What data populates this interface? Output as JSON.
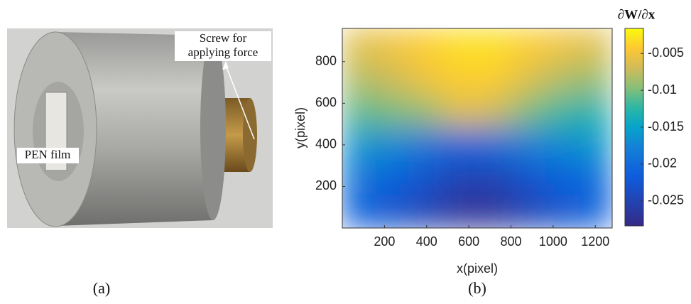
{
  "panel_a": {
    "screw_label": [
      "Screw for",
      "applying force"
    ],
    "film_label": "PEN film",
    "caption": "(a)"
  },
  "chart_data": {
    "type": "heatmap",
    "caption": "(b)",
    "xlabel": "x(pixel)",
    "ylabel": "y(pixel)",
    "xlim": [
      0,
      1280
    ],
    "ylim": [
      0,
      960
    ],
    "xticks": [
      200,
      400,
      600,
      800,
      1000,
      1200
    ],
    "yticks": [
      200,
      400,
      600,
      800
    ],
    "x": [
      80,
      240,
      400,
      560,
      720,
      880,
      1040,
      1200
    ],
    "y": [
      880,
      720,
      560,
      400,
      240,
      80
    ],
    "z": [
      [
        -0.006,
        -0.005,
        -0.004,
        -0.003,
        -0.003,
        -0.004,
        -0.005,
        -0.006
      ],
      [
        -0.008,
        -0.007,
        -0.005,
        -0.004,
        -0.004,
        -0.006,
        -0.008,
        -0.009
      ],
      [
        -0.011,
        -0.01,
        -0.009,
        -0.006,
        -0.007,
        -0.01,
        -0.012,
        -0.013
      ],
      [
        -0.016,
        -0.017,
        -0.019,
        -0.021,
        -0.02,
        -0.018,
        -0.017,
        -0.016
      ],
      [
        -0.019,
        -0.021,
        -0.023,
        -0.025,
        -0.025,
        -0.023,
        -0.021,
        -0.02
      ],
      [
        -0.021,
        -0.023,
        -0.025,
        -0.027,
        -0.027,
        -0.025,
        -0.023,
        -0.021
      ]
    ],
    "colorbar_label": "∂W/∂x",
    "clim": [
      -0.0284,
      -0.0016
    ],
    "cticks": [
      -0.025,
      -0.02,
      -0.015,
      -0.01,
      -0.005
    ],
    "colormap": "parula"
  }
}
